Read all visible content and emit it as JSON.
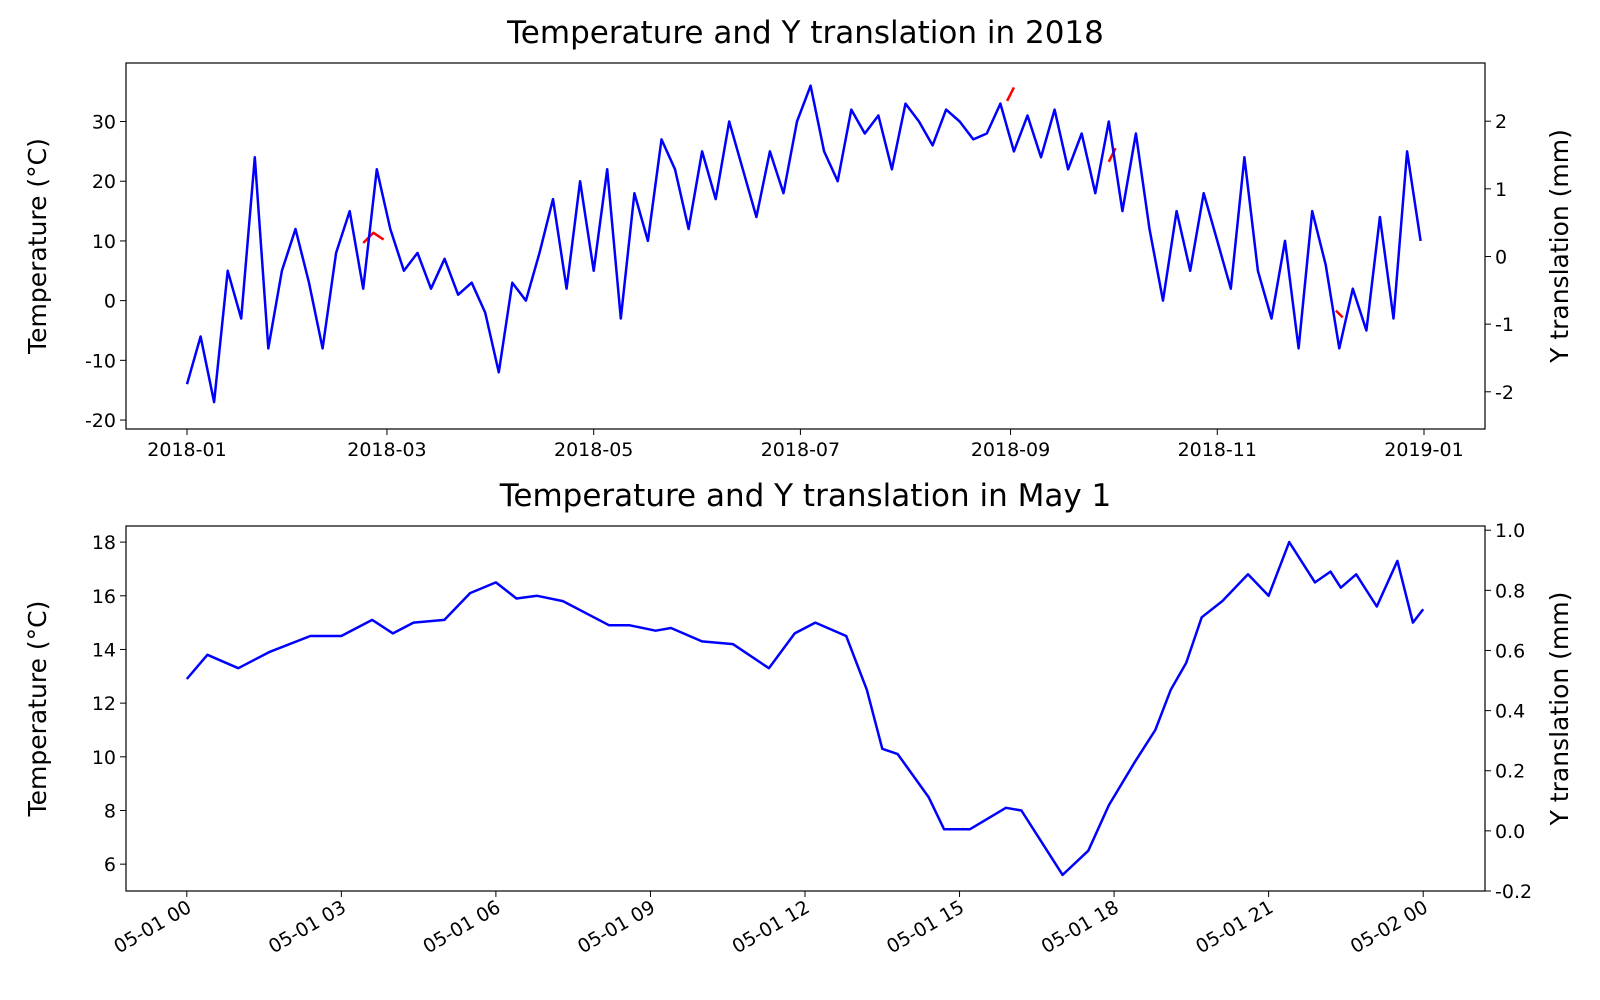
{
  "chart_data": [
    {
      "type": "line",
      "title": "Temperature and Y translation in 2018",
      "ylabel": "Temperature (°C)",
      "y2label": "Y translation (mm)",
      "x": [
        0,
        4,
        8,
        12,
        16,
        20,
        24,
        28,
        32,
        36,
        40,
        44,
        48,
        52,
        56,
        60,
        64,
        68,
        72,
        76,
        80,
        84,
        88,
        92,
        96,
        100,
        104,
        108,
        112,
        116,
        120,
        124,
        128,
        132,
        136,
        140,
        144,
        148,
        152,
        156,
        160,
        164,
        168,
        172,
        176,
        180,
        184,
        188,
        192,
        196,
        200,
        204,
        208,
        212,
        216,
        220,
        224,
        228,
        232,
        236,
        240,
        244,
        248,
        252,
        256,
        260,
        264,
        268,
        272,
        276,
        280,
        284,
        288,
        292,
        296,
        300,
        304,
        308,
        312,
        316,
        320,
        324,
        328,
        332,
        336,
        340,
        344,
        348,
        352,
        356,
        360,
        364
      ],
      "xlim": [
        -18,
        383
      ],
      "xticks": [
        {
          "value": 0,
          "label": "2018-01"
        },
        {
          "value": 59,
          "label": "2018-03"
        },
        {
          "value": 120,
          "label": "2018-05"
        },
        {
          "value": 181,
          "label": "2018-07"
        },
        {
          "value": 243,
          "label": "2018-09"
        },
        {
          "value": 304,
          "label": "2018-11"
        },
        {
          "value": 365,
          "label": "2019-01"
        }
      ],
      "ylim": [
        -21.5,
        39.8
      ],
      "yticks": [
        -20,
        -10,
        0,
        10,
        20,
        30
      ],
      "y2lim": [
        -2.55,
        2.86
      ],
      "y2ticks": [
        -2,
        -1,
        0,
        1,
        2
      ],
      "series": [
        {
          "color": "#ff0000",
          "axis": "y2",
          "x": [
            52,
            55,
            58,
            59,
            242,
            244,
            245,
            272,
            274,
            275,
            339,
            341
          ],
          "values": [
            0.2,
            0.35,
            0.25,
            null,
            2.3,
            2.5,
            null,
            1.4,
            1.6,
            null,
            -0.8,
            -0.9
          ]
        },
        {
          "color": "#0000ff",
          "values": [
            -14,
            -6,
            -17,
            5,
            -3,
            24,
            -8,
            5,
            12,
            3,
            -8,
            8,
            15,
            2,
            22,
            12,
            5,
            8,
            2,
            7,
            1,
            3,
            -2,
            -12,
            3,
            0,
            8,
            17,
            2,
            20,
            5,
            22,
            -3,
            18,
            10,
            27,
            22,
            12,
            25,
            17,
            30,
            22,
            14,
            25,
            18,
            30,
            36,
            25,
            20,
            32,
            28,
            31,
            22,
            33,
            30,
            26,
            32,
            30,
            27,
            28,
            33,
            25,
            31,
            24,
            32,
            22,
            28,
            18,
            30,
            15,
            28,
            12,
            0,
            15,
            5,
            18,
            10,
            2,
            24,
            5,
            -3,
            10,
            -8,
            15,
            6,
            -8,
            2,
            -5,
            14,
            -3,
            25,
            10
          ]
        }
      ]
    },
    {
      "type": "line",
      "title": "Temperature and Y translation in May 1",
      "ylabel": "Temperature (°C)",
      "y2label": "Y translation (mm)",
      "x": [
        0,
        0.4,
        1,
        1.6,
        2.4,
        3,
        3.6,
        4,
        4.4,
        5,
        5.5,
        6,
        6.4,
        6.8,
        7.3,
        8.2,
        8.6,
        9.1,
        9.4,
        10,
        10.6,
        11.3,
        11.8,
        12.2,
        12.8,
        13.2,
        13.5,
        13.8,
        14.4,
        14.7,
        15.2,
        15.9,
        16.2,
        16.6,
        17,
        17.5,
        17.9,
        18.4,
        18.8,
        19.1,
        19.4,
        19.7,
        20.1,
        20.6,
        21,
        21.4,
        21.9,
        22.2,
        22.4,
        22.7,
        23.1,
        23.5,
        23.8,
        24
      ],
      "xlim": [
        -1.18,
        25.2
      ],
      "xticks": [
        {
          "value": 0,
          "label": "05-01 00"
        },
        {
          "value": 3,
          "label": "05-01 03"
        },
        {
          "value": 6,
          "label": "05-01 06"
        },
        {
          "value": 9,
          "label": "05-01 09"
        },
        {
          "value": 12,
          "label": "05-01 12"
        },
        {
          "value": 15,
          "label": "05-01 15"
        },
        {
          "value": 18,
          "label": "05-01 18"
        },
        {
          "value": 21,
          "label": "05-01 21"
        },
        {
          "value": 24,
          "label": "05-02 00"
        }
      ],
      "ylim": [
        5.0,
        18.6
      ],
      "yticks": [
        6,
        8,
        10,
        12,
        14,
        16,
        18
      ],
      "y2lim": [
        -0.2,
        1.014
      ],
      "y2ticks": [
        -0.2,
        {
          "value": 0,
          "label": "0.0"
        },
        0.2,
        0.4,
        0.6,
        0.8,
        {
          "value": 1,
          "label": "1.0"
        }
      ],
      "series": [
        {
          "color": "#0000ff",
          "values": [
            12.9,
            13.8,
            13.3,
            13.9,
            14.5,
            14.5,
            15.1,
            14.6,
            15.0,
            15.1,
            16.1,
            16.5,
            15.9,
            16.0,
            15.8,
            14.9,
            14.9,
            14.7,
            14.8,
            14.3,
            14.2,
            13.3,
            14.6,
            15.0,
            14.5,
            12.5,
            10.3,
            10.1,
            8.5,
            7.3,
            7.3,
            8.1,
            8.0,
            6.8,
            5.6,
            6.5,
            8.2,
            9.8,
            11.0,
            12.5,
            13.5,
            15.2,
            15.8,
            16.8,
            16.0,
            18.0,
            16.5,
            16.9,
            16.3,
            16.8,
            15.6,
            17.3,
            15.0,
            15.5
          ]
        }
      ]
    }
  ]
}
